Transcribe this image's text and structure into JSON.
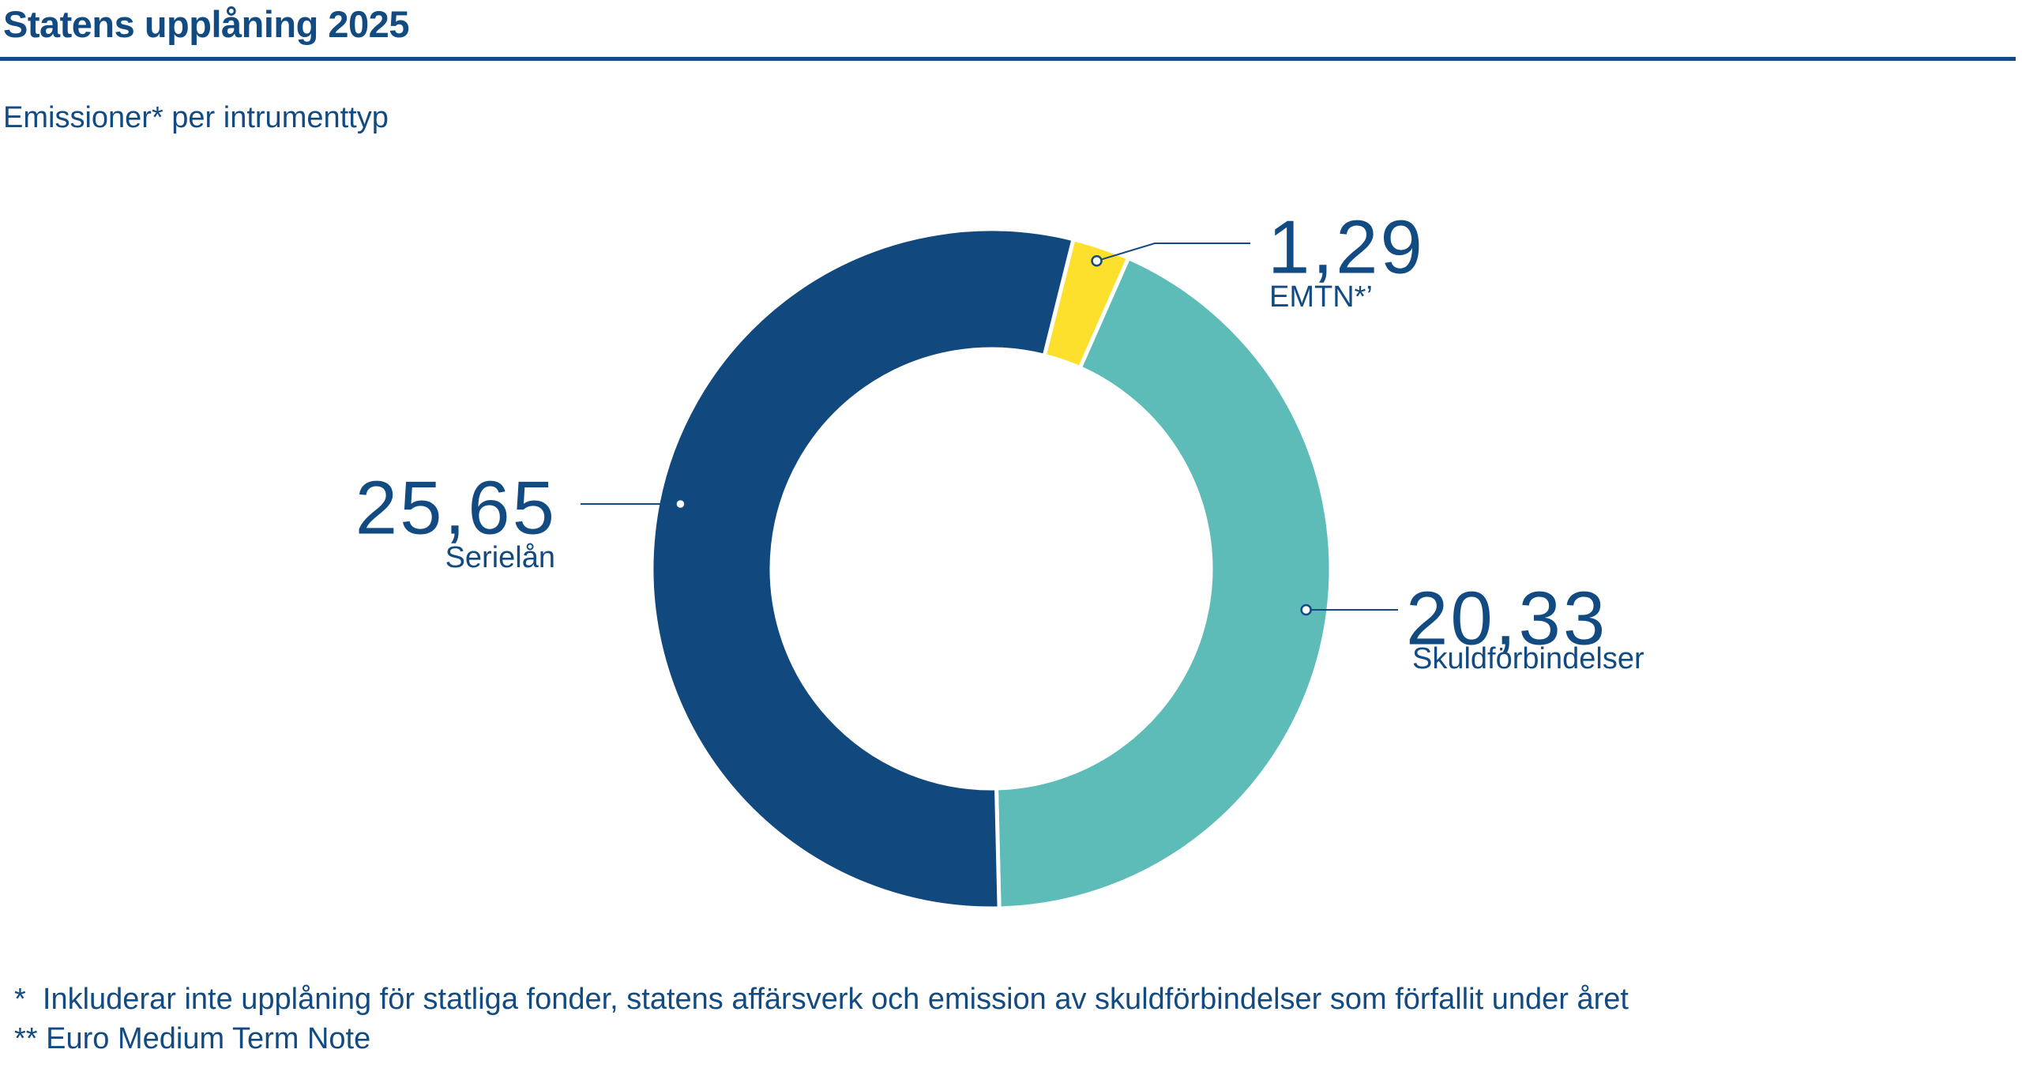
{
  "header": {
    "title": "Statens upplåning 2025",
    "subtitle": "Emissioner* per intrumenttyp"
  },
  "chart_data": {
    "type": "pie",
    "variant": "donut",
    "categories": [
      "EMTN*’",
      "Skuldförbindelser",
      "Serielån"
    ],
    "values": [
      1.29,
      20.33,
      25.65
    ],
    "value_labels": [
      "1,29",
      "20,33",
      "25,65"
    ],
    "colors": [
      "#fde02c",
      "#5dbcb8",
      "#11487e"
    ],
    "legend": "none"
  },
  "footnotes": [
    "*  Inkluderar inte upplåning för statliga fonder, statens affärsverk och emission av skuldförbindelser som förfallit under året",
    "** Euro Medium Term Note"
  ]
}
